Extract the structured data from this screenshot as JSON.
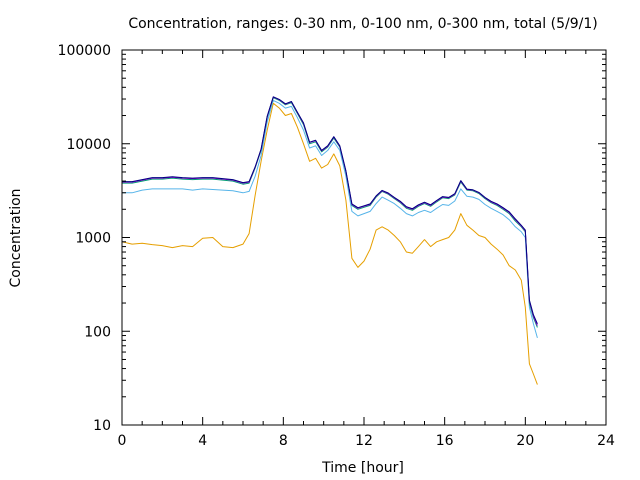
{
  "chart_data": {
    "type": "line",
    "title": "Concentration, ranges: 0-30 nm, 0-100 nm, 0-300 nm, total (5/9/1)",
    "xlabel": "Time [hour]",
    "ylabel": "Concentration",
    "xlim": [
      0,
      24
    ],
    "ylim": [
      10,
      100000
    ],
    "yscale": "log",
    "xticks": [
      0,
      4,
      8,
      12,
      16,
      20,
      24
    ],
    "xtick_labels": [
      "0",
      "4",
      "8",
      "12",
      "16",
      "20",
      "24"
    ],
    "yticks": [
      10,
      100,
      1000,
      10000,
      100000
    ],
    "ytick_labels": [
      "10",
      "100",
      "1000",
      "10000",
      "100000"
    ],
    "grid": false,
    "series": [
      {
        "color": "#e69f00",
        "x": [
          0,
          0.5,
          1,
          1.5,
          2,
          2.5,
          3,
          3.5,
          4,
          4.5,
          5,
          5.5,
          6,
          6.3,
          6.6,
          6.9,
          7.2,
          7.5,
          7.8,
          8.1,
          8.4,
          8.7,
          9,
          9.3,
          9.6,
          9.9,
          10.2,
          10.5,
          10.8,
          11.1,
          11.4,
          11.7,
          12,
          12.3,
          12.6,
          12.9,
          13.2,
          13.5,
          13.8,
          14.1,
          14.4,
          14.7,
          15,
          15.3,
          15.6,
          15.9,
          16.2,
          16.5,
          16.8,
          17.1,
          17.4,
          17.7,
          18,
          18.3,
          18.6,
          18.9,
          19.2,
          19.5,
          19.8,
          20,
          20.2,
          20.4,
          20.6
        ],
        "y": [
          900,
          850,
          870,
          840,
          820,
          780,
          820,
          800,
          980,
          1000,
          800,
          780,
          850,
          1100,
          2800,
          6500,
          14000,
          27000,
          24000,
          20000,
          21000,
          15000,
          10000,
          6500,
          7000,
          5500,
          6000,
          7800,
          5800,
          2500,
          600,
          480,
          560,
          750,
          1200,
          1300,
          1200,
          1050,
          900,
          700,
          680,
          800,
          950,
          800,
          900,
          950,
          1000,
          1200,
          1800,
          1350,
          1200,
          1050,
          1000,
          850,
          750,
          650,
          500,
          450,
          350,
          180,
          45,
          35,
          27
        ]
      },
      {
        "color": "#56b4e9",
        "x": [
          0,
          0.5,
          1,
          1.5,
          2,
          2.5,
          3,
          3.5,
          4,
          4.5,
          5,
          5.5,
          6,
          6.3,
          6.6,
          6.9,
          7.2,
          7.5,
          7.8,
          8.1,
          8.4,
          8.7,
          9,
          9.3,
          9.6,
          9.9,
          10.2,
          10.5,
          10.8,
          11.1,
          11.4,
          11.7,
          12,
          12.3,
          12.6,
          12.9,
          13.2,
          13.5,
          13.8,
          14.1,
          14.4,
          14.7,
          15,
          15.3,
          15.6,
          15.9,
          16.2,
          16.5,
          16.8,
          17.1,
          17.4,
          17.7,
          18,
          18.3,
          18.6,
          18.9,
          19.2,
          19.5,
          19.8,
          20,
          20.2,
          20.4,
          20.6
        ],
        "y": [
          3000,
          3000,
          3200,
          3300,
          3300,
          3300,
          3300,
          3200,
          3300,
          3250,
          3200,
          3150,
          3000,
          3100,
          4500,
          7500,
          17000,
          29000,
          27000,
          24000,
          25000,
          19000,
          14000,
          9000,
          9500,
          7500,
          8500,
          10500,
          8500,
          4500,
          1900,
          1700,
          1800,
          1900,
          2300,
          2700,
          2500,
          2300,
          2050,
          1800,
          1700,
          1850,
          1950,
          1850,
          2050,
          2250,
          2200,
          2450,
          3300,
          2750,
          2700,
          2550,
          2250,
          2050,
          1900,
          1750,
          1550,
          1300,
          1150,
          1000,
          180,
          120,
          85
        ]
      },
      {
        "color": "#009e73",
        "x": [
          0,
          0.5,
          1,
          1.5,
          2,
          2.5,
          3,
          3.5,
          4,
          4.5,
          5,
          5.5,
          6,
          6.3,
          6.6,
          6.9,
          7.2,
          7.5,
          7.8,
          8.1,
          8.4,
          8.7,
          9,
          9.3,
          9.6,
          9.9,
          10.2,
          10.5,
          10.8,
          11.1,
          11.4,
          11.7,
          12,
          12.3,
          12.6,
          12.9,
          13.2,
          13.5,
          13.8,
          14.1,
          14.4,
          14.7,
          15,
          15.3,
          15.6,
          15.9,
          16.2,
          16.5,
          16.8,
          17.1,
          17.4,
          17.7,
          18,
          18.3,
          18.6,
          18.9,
          19.2,
          19.5,
          19.8,
          20,
          20.2,
          20.4,
          20.6
        ],
        "y": [
          3800,
          3800,
          4000,
          4200,
          4200,
          4300,
          4200,
          4150,
          4200,
          4200,
          4100,
          4000,
          3700,
          3800,
          5500,
          8500,
          19000,
          31000,
          29000,
          26000,
          27500,
          21000,
          16000,
          10000,
          10500,
          8200,
          9200,
          11500,
          9200,
          5000,
          2200,
          2000,
          2100,
          2200,
          2700,
          3100,
          2900,
          2600,
          2350,
          2050,
          1950,
          2150,
          2300,
          2150,
          2400,
          2650,
          2600,
          2850,
          3900,
          3200,
          3150,
          2950,
          2600,
          2350,
          2200,
          2000,
          1800,
          1500,
          1300,
          1150,
          200,
          140,
          110
        ]
      },
      {
        "color": "#9400d3",
        "x": [
          0,
          0.5,
          1,
          1.5,
          2,
          2.5,
          3,
          3.5,
          4,
          4.5,
          5,
          5.5,
          6,
          6.3,
          6.6,
          6.9,
          7.2,
          7.5,
          7.8,
          8.1,
          8.4,
          8.7,
          9,
          9.3,
          9.6,
          9.9,
          10.2,
          10.5,
          10.8,
          11.1,
          11.4,
          11.7,
          12,
          12.3,
          12.6,
          12.9,
          13.2,
          13.5,
          13.8,
          14.1,
          14.4,
          14.7,
          15,
          15.3,
          15.6,
          15.9,
          16.2,
          16.5,
          16.8,
          17.1,
          17.4,
          17.7,
          18,
          18.3,
          18.6,
          18.9,
          19.2,
          19.5,
          19.8,
          20,
          20.2,
          20.4,
          20.6
        ],
        "y": [
          3900,
          3900,
          4100,
          4300,
          4300,
          4400,
          4300,
          4250,
          4300,
          4300,
          4200,
          4100,
          3800,
          3900,
          5600,
          8700,
          19500,
          31500,
          29500,
          26500,
          28000,
          21500,
          16500,
          10300,
          10800,
          8400,
          9400,
          11800,
          9400,
          5100,
          2250,
          2050,
          2150,
          2250,
          2750,
          3150,
          2950,
          2650,
          2400,
          2100,
          2000,
          2200,
          2350,
          2200,
          2450,
          2700,
          2650,
          2900,
          4000,
          3250,
          3200,
          3000,
          2650,
          2400,
          2250,
          2050,
          1850,
          1550,
          1330,
          1180,
          210,
          145,
          115
        ]
      },
      {
        "color": "#000080",
        "x": [
          0,
          0.5,
          1,
          1.5,
          2,
          2.5,
          3,
          3.5,
          4,
          4.5,
          5,
          5.5,
          6,
          6.3,
          6.6,
          6.9,
          7.2,
          7.5,
          7.8,
          8.1,
          8.4,
          8.7,
          9,
          9.3,
          9.6,
          9.9,
          10.2,
          10.5,
          10.8,
          11.1,
          11.4,
          11.7,
          12,
          12.3,
          12.6,
          12.9,
          13.2,
          13.5,
          13.8,
          14.1,
          14.4,
          14.7,
          15,
          15.3,
          15.6,
          15.9,
          16.2,
          16.5,
          16.8,
          17.1,
          17.4,
          17.7,
          18,
          18.3,
          18.6,
          18.9,
          19.2,
          19.5,
          19.8,
          20,
          20.2,
          20.4,
          20.6
        ],
        "y": [
          3950,
          3950,
          4150,
          4350,
          4350,
          4450,
          4350,
          4300,
          4350,
          4350,
          4250,
          4150,
          3850,
          3950,
          5650,
          8800,
          19700,
          31700,
          29700,
          26700,
          28200,
          21700,
          16700,
          10400,
          10900,
          8500,
          9500,
          11900,
          9500,
          5150,
          2280,
          2080,
          2180,
          2280,
          2780,
          3180,
          2980,
          2680,
          2430,
          2130,
          2030,
          2230,
          2380,
          2230,
          2480,
          2730,
          2680,
          2930,
          4050,
          3280,
          3230,
          3030,
          2680,
          2430,
          2280,
          2080,
          1880,
          1580,
          1350,
          1200,
          215,
          150,
          120
        ]
      }
    ]
  }
}
